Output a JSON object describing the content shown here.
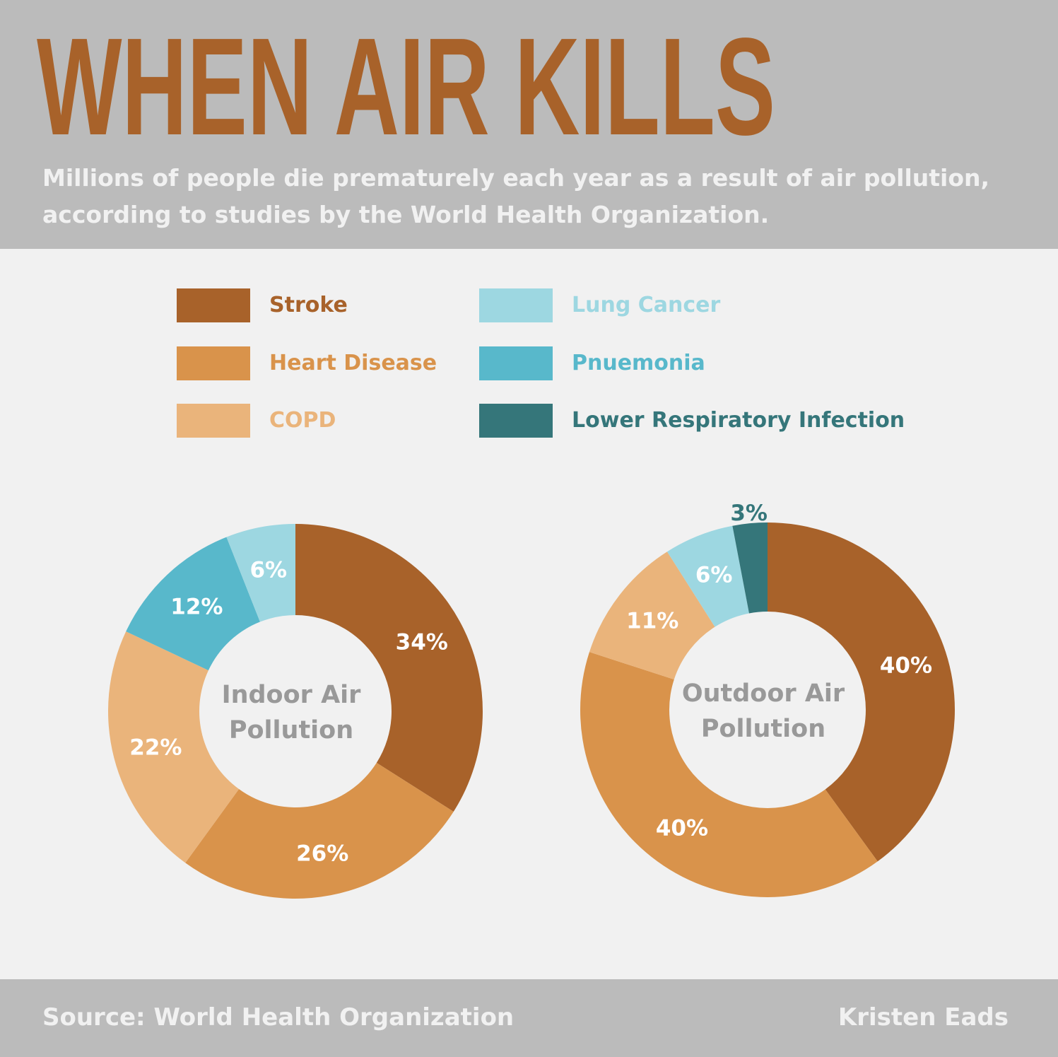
{
  "header": {
    "title": "WHEN AIR KILLS",
    "subtitle_line1": "Millions of people die prematurely each year as a result of air pollution,",
    "subtitle_line2": "according to studies by the World Health Organization."
  },
  "colors": {
    "title": "#a8622a",
    "header_bg": "#bbbbbb",
    "page_bg": "#f1f1f1",
    "center_text": "#999999",
    "stroke": "#a8622a",
    "heart_disease": "#d9934b",
    "copd": "#eab47b",
    "lung_cancer": "#9dd7e1",
    "pnuemonia": "#58b8cb",
    "lower_respiratory_infection": "#35767a"
  },
  "legend": [
    {
      "label": "Stroke",
      "color": "#a8622a"
    },
    {
      "label": "Heart Disease",
      "color": "#d9934b"
    },
    {
      "label": "COPD",
      "color": "#eab47b"
    },
    {
      "label": "Lung Cancer",
      "color": "#9dd7e1"
    },
    {
      "label": "Pnuemonia",
      "color": "#58b8cb"
    },
    {
      "label": "Lower Respiratory Infection",
      "color": "#35767a"
    }
  ],
  "chart_data": [
    {
      "type": "pie",
      "center_label_line1": "Indoor Air",
      "center_label_line2": "Pollution",
      "slices": [
        {
          "category": "Stroke",
          "value": 34,
          "label": "34%",
          "color": "#a8622a"
        },
        {
          "category": "Heart Disease",
          "value": 26,
          "label": "26%",
          "color": "#d9934b"
        },
        {
          "category": "COPD",
          "value": 22,
          "label": "22%",
          "color": "#eab47b"
        },
        {
          "category": "Pnuemonia",
          "value": 12,
          "label": "12%",
          "color": "#58b8cb"
        },
        {
          "category": "Lung Cancer",
          "value": 6,
          "label": "6%",
          "color": "#9dd7e1"
        }
      ]
    },
    {
      "type": "pie",
      "center_label_line1": "Outdoor Air",
      "center_label_line2": "Pollution",
      "slices": [
        {
          "category": "Stroke",
          "value": 40,
          "label": "40%",
          "color": "#a8622a"
        },
        {
          "category": "Heart Disease",
          "value": 40,
          "label": "40%",
          "color": "#d9934b"
        },
        {
          "category": "COPD",
          "value": 11,
          "label": "11%",
          "color": "#eab47b"
        },
        {
          "category": "Lung Cancer",
          "value": 6,
          "label": "6%",
          "color": "#9dd7e1"
        },
        {
          "category": "Lower Respiratory Infection",
          "value": 3,
          "label": "3%",
          "color": "#35767a"
        }
      ]
    }
  ],
  "footer": {
    "source": "Source: World Health Organization",
    "author": "Kristen Eads"
  }
}
